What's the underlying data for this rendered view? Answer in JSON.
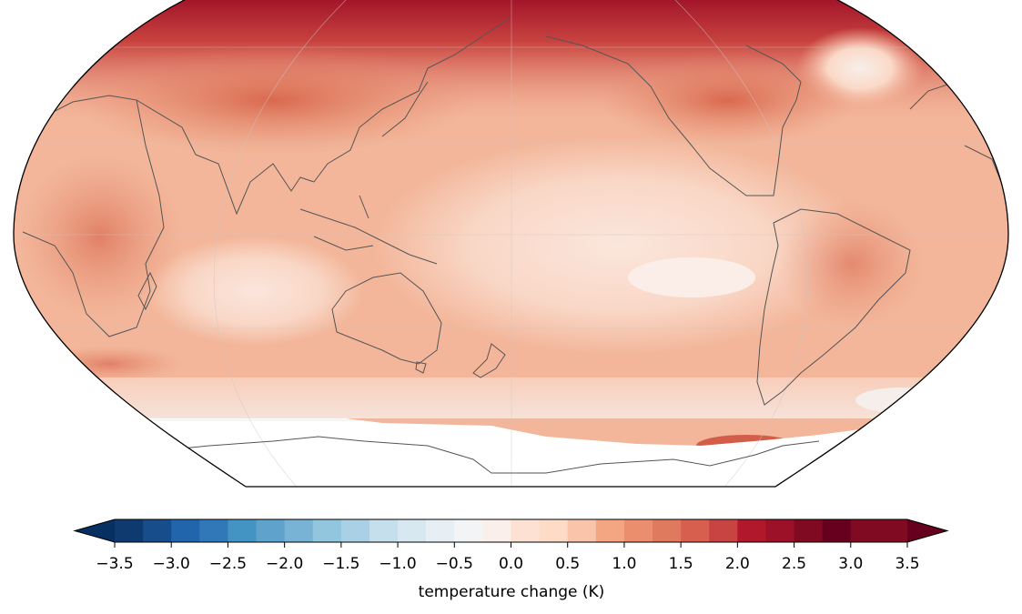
{
  "map": {
    "projection": "robinson",
    "central_longitude": 180,
    "field": "temperature change",
    "land_outline_color": "#555555",
    "no_data_region": "antarctica"
  },
  "colorbar": {
    "label": "temperature change (K)",
    "ticks": [
      "−3.5",
      "−3.0",
      "−2.5",
      "−2.0",
      "−1.5",
      "−1.0",
      "−0.5",
      "0.0",
      "0.5",
      "1.0",
      "1.5",
      "2.0",
      "2.5",
      "3.0",
      "3.5"
    ],
    "levels": [
      -3.5,
      3.5
    ],
    "step": 0.25,
    "extend": "both",
    "colors": [
      "#053061",
      "#0f3a70",
      "#174d8a",
      "#2166ac",
      "#3078b8",
      "#4393c3",
      "#5fa2cb",
      "#78b3d6",
      "#92c5de",
      "#a9d0e5",
      "#c5dfec",
      "#d8e8f1",
      "#e8eff4",
      "#f3f4f6",
      "#faefea",
      "#fde2d4",
      "#fddbc7",
      "#f9c4aa",
      "#f4a582",
      "#ea8e6e",
      "#df7a5e",
      "#d6604d",
      "#c74442",
      "#b2182b",
      "#9c1127",
      "#7f0a22",
      "#67001f"
    ]
  }
}
